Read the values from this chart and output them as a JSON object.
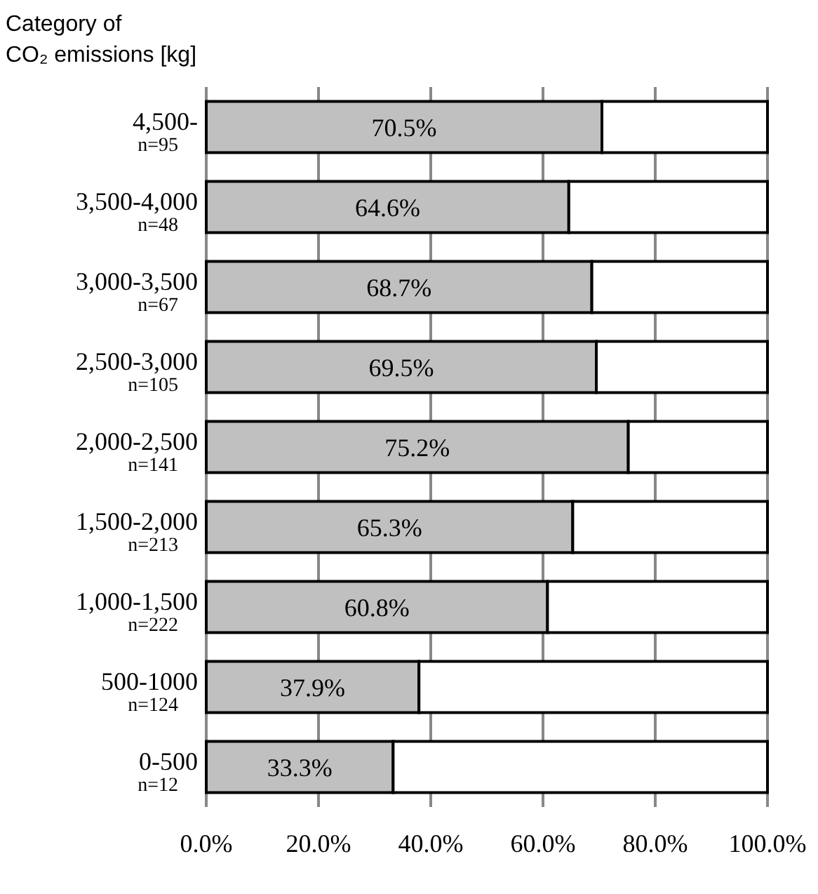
{
  "chart_data": {
    "type": "bar",
    "orientation": "horizontal",
    "stacked": true,
    "title": "Category of\nCO₂ emissions [kg]",
    "categories": [
      "4,500-\nn=95",
      "3,500-4,000\nn=48",
      "3,000-3,500\nn=67",
      "2,500-3,000\nn=105",
      "2,000-2,500\nn=141",
      "1,500-2,000\nn=213",
      "1,000-1,500\nn=222",
      "500-1000\nn=124",
      "0-500\nn=12"
    ],
    "series": [
      {
        "color": "#c0c0c0",
        "values": [
          70.5,
          64.6,
          68.7,
          69.5,
          75.2,
          65.3,
          60.8,
          37.9,
          33.3
        ],
        "value_labels": [
          "70.5%",
          "64.6%",
          "68.7%",
          "69.5%",
          "75.2%",
          "65.3%",
          "60.8%",
          "37.9%",
          "33.3%"
        ]
      },
      {
        "color": "#ffffff",
        "values": [
          29.5,
          35.4,
          31.3,
          30.5,
          24.8,
          34.7,
          39.2,
          62.1,
          66.7
        ]
      }
    ],
    "xlim": [
      0,
      100
    ],
    "xticks": [
      {
        "value": 0,
        "label": "0.0%"
      },
      {
        "value": 20,
        "label": "20.0%"
      },
      {
        "value": 40,
        "label": "40.0%"
      },
      {
        "value": 60,
        "label": "60.0%"
      },
      {
        "value": 80,
        "label": "80.0%"
      },
      {
        "value": 100,
        "label": "100.0%"
      }
    ],
    "grid": "x"
  }
}
